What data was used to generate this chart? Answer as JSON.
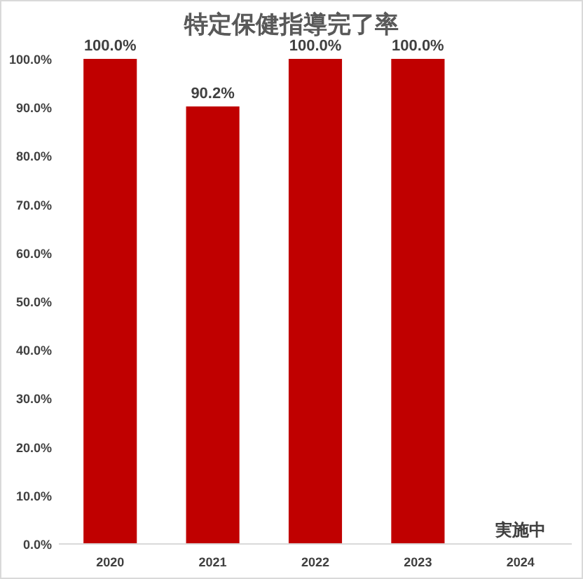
{
  "chart_data": {
    "type": "bar",
    "title": "特定保健指導完了率",
    "categories": [
      "2020",
      "2021",
      "2022",
      "2023",
      "2024"
    ],
    "values": [
      100,
      90.2,
      100,
      100,
      null
    ],
    "value_labels": [
      "100.0%",
      "90.2%",
      "100.0%",
      "100.0%",
      null
    ],
    "color": "#c00000",
    "ylim": [
      0,
      100
    ],
    "yticks": [
      {
        "value": 0,
        "label": "0.0%"
      },
      {
        "value": 10,
        "label": "10.0%"
      },
      {
        "value": 20,
        "label": "20.0%"
      },
      {
        "value": 30,
        "label": "30.0%"
      },
      {
        "value": 40,
        "label": "40.0%"
      },
      {
        "value": 50,
        "label": "50.0%"
      },
      {
        "value": 60,
        "label": "60.0%"
      },
      {
        "value": 70,
        "label": "70.0%"
      },
      {
        "value": 80,
        "label": "80.0%"
      },
      {
        "value": 90,
        "label": "90.0%"
      },
      {
        "value": 100,
        "label": "100.0%"
      }
    ],
    "annotations": [
      "実施中"
    ],
    "grid": false
  }
}
